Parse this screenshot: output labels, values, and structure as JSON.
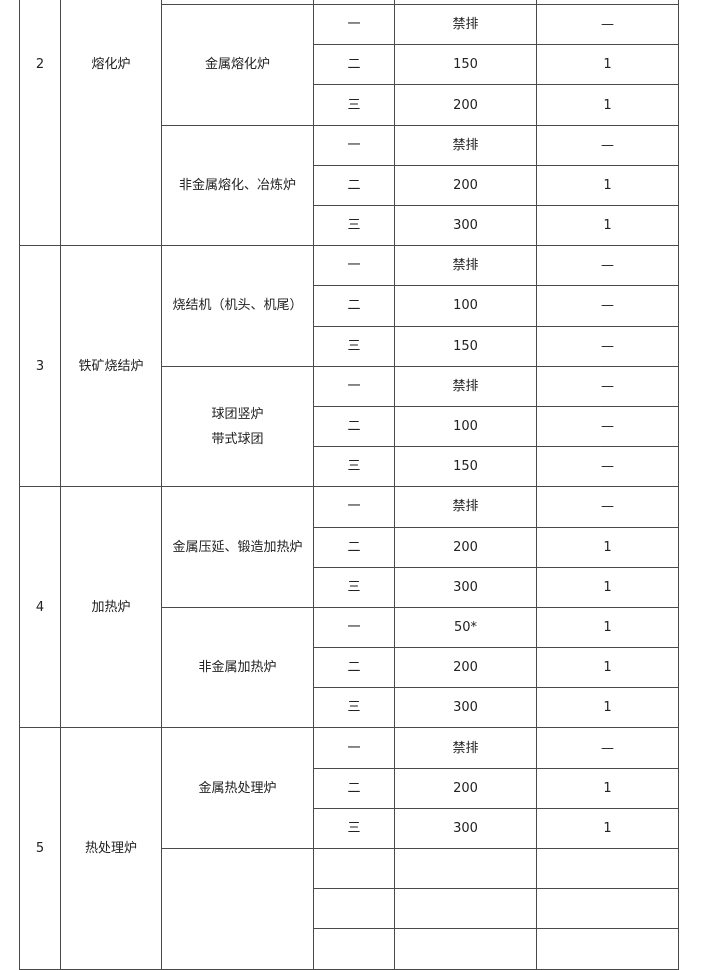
{
  "table": {
    "groups": [
      {
        "no": "2",
        "name": "熔化炉",
        "subgroups": [
          {
            "name": "",
            "rows": [
              {
                "level": "",
                "limit": "",
                "time": ""
              },
              {
                "level": "",
                "limit": "",
                "time": ""
              },
              {
                "level": "",
                "limit": "",
                "time": ""
              }
            ]
          },
          {
            "name": "金属熔化炉",
            "rows": [
              {
                "level": "一",
                "limit": "禁排",
                "time": "—"
              },
              {
                "level": "二",
                "limit": "150",
                "time": "1"
              },
              {
                "level": "三",
                "limit": "200",
                "time": "1"
              }
            ]
          },
          {
            "name": "非金属熔化、冶炼炉",
            "rows": [
              {
                "level": "一",
                "limit": "禁排",
                "time": "—"
              },
              {
                "level": "二",
                "limit": "200",
                "time": "1"
              },
              {
                "level": "三",
                "limit": "300",
                "time": "1"
              }
            ]
          }
        ]
      },
      {
        "no": "3",
        "name": "铁矿烧结炉",
        "subgroups": [
          {
            "name": "烧结机（机头、机尾）",
            "rows": [
              {
                "level": "一",
                "limit": "禁排",
                "time": "—"
              },
              {
                "level": "二",
                "limit": "100",
                "time": "—"
              },
              {
                "level": "三",
                "limit": "150",
                "time": "—"
              }
            ]
          },
          {
            "name": "球团竖炉\n带式球团",
            "rows": [
              {
                "level": "一",
                "limit": "禁排",
                "time": "—"
              },
              {
                "level": "二",
                "limit": "100",
                "time": "—"
              },
              {
                "level": "三",
                "limit": "150",
                "time": "—"
              }
            ]
          }
        ]
      },
      {
        "no": "4",
        "name": "加热炉",
        "subgroups": [
          {
            "name": "金属压延、锻造加热炉",
            "rows": [
              {
                "level": "一",
                "limit": "禁排",
                "time": "—"
              },
              {
                "level": "二",
                "limit": "200",
                "time": "1"
              },
              {
                "level": "三",
                "limit": "300",
                "time": "1"
              }
            ]
          },
          {
            "name": "非金属加热炉",
            "rows": [
              {
                "level": "一",
                "limit": "50*",
                "time": "1"
              },
              {
                "level": "二",
                "limit": "200",
                "time": "1"
              },
              {
                "level": "三",
                "limit": "300",
                "time": "1"
              }
            ]
          }
        ]
      },
      {
        "no": "5",
        "name": "热处理炉",
        "subgroups": [
          {
            "name": "金属热处理炉",
            "rows": [
              {
                "level": "一",
                "limit": "禁排",
                "time": "—"
              },
              {
                "level": "二",
                "limit": "200",
                "time": "1"
              },
              {
                "level": "三",
                "limit": "300",
                "time": "1"
              }
            ]
          },
          {
            "name": "",
            "rows": [
              {
                "level": "",
                "limit": "",
                "time": ""
              },
              {
                "level": "",
                "limit": "",
                "time": ""
              },
              {
                "level": "",
                "limit": "",
                "time": ""
              }
            ]
          }
        ]
      }
    ]
  }
}
